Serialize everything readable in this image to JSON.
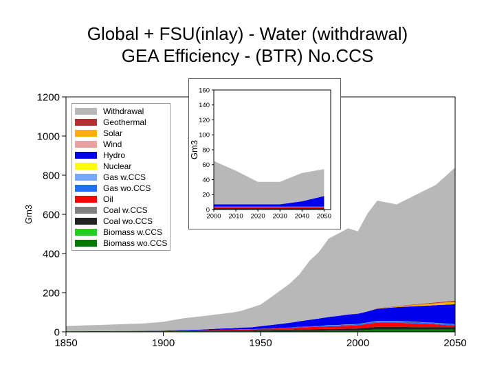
{
  "title_line1": "Global + FSU(inlay) - Water (withdrawal)",
  "title_line2": "GEA Efficiency - (BTR) No.CCS",
  "chart_data": [
    {
      "type": "area",
      "stacked": true,
      "ylabel": "Gm3",
      "xlim": [
        1850,
        2050
      ],
      "ylim": [
        0,
        1200
      ],
      "x_ticks": [
        "1850",
        "1900",
        "1950",
        "2000",
        "2050"
      ],
      "y_ticks": [
        "0",
        "200",
        "400",
        "600",
        "800",
        "1000",
        "1200"
      ],
      "legend": "top-left inside plot",
      "x": [
        1850,
        1870,
        1890,
        1900,
        1910,
        1920,
        1930,
        1935,
        1940,
        1945,
        1950,
        1955,
        1960,
        1965,
        1970,
        1975,
        1980,
        1985,
        1990,
        1995,
        2000,
        2005,
        2010,
        2020,
        2030,
        2040,
        2050
      ],
      "series": [
        {
          "name": "Biomass wo.CCS",
          "color": "#007a00",
          "values": [
            3,
            3,
            3,
            3,
            3,
            3,
            3,
            3,
            3,
            3,
            4,
            4,
            4,
            4,
            5,
            5,
            5,
            6,
            6,
            6,
            7,
            10,
            12,
            12,
            12,
            12,
            12
          ]
        },
        {
          "name": "Biomass w.CCS",
          "color": "#22cc22",
          "values": [
            0,
            0,
            0,
            0,
            0,
            0,
            0,
            0,
            0,
            0,
            0,
            0,
            0,
            0,
            0,
            0,
            0,
            0,
            0,
            0,
            0,
            0,
            0,
            0,
            0,
            0,
            0
          ]
        },
        {
          "name": "Coal wo.CCS",
          "color": "#222222",
          "values": [
            0,
            1,
            2,
            2,
            3,
            3,
            4,
            4,
            5,
            5,
            6,
            6,
            7,
            7,
            8,
            8,
            9,
            9,
            9,
            10,
            10,
            12,
            13,
            13,
            12,
            12,
            12
          ]
        },
        {
          "name": "Coal w.CCS",
          "color": "#808080",
          "values": [
            0,
            0,
            0,
            0,
            0,
            0,
            0,
            0,
            0,
            0,
            0,
            0,
            0,
            0,
            0,
            0,
            0,
            0,
            0,
            0,
            0,
            0,
            0,
            0,
            0,
            0,
            0
          ]
        },
        {
          "name": "Oil",
          "color": "#ff0000",
          "values": [
            0,
            0,
            0,
            0,
            1,
            2,
            3,
            3,
            4,
            4,
            5,
            6,
            7,
            8,
            10,
            11,
            12,
            13,
            14,
            15,
            16,
            18,
            22,
            22,
            18,
            14,
            8
          ]
        },
        {
          "name": "Gas wo.CCS",
          "color": "#1e6eff",
          "values": [
            0,
            0,
            0,
            0,
            0,
            0,
            1,
            1,
            1,
            1,
            1,
            2,
            2,
            3,
            3,
            4,
            4,
            5,
            5,
            6,
            6,
            7,
            8,
            8,
            8,
            7,
            6
          ]
        },
        {
          "name": "Gas w.CCS",
          "color": "#74a9ff",
          "values": [
            0,
            0,
            0,
            0,
            0,
            0,
            0,
            0,
            0,
            0,
            0,
            0,
            0,
            0,
            0,
            0,
            0,
            0,
            0,
            0,
            0,
            0,
            0,
            0,
            0,
            0,
            0
          ]
        },
        {
          "name": "Nuclear",
          "color": "#ffff00",
          "values": [
            0,
            0,
            0,
            0,
            0,
            0,
            0,
            0,
            0,
            0,
            0,
            0,
            0,
            0,
            0,
            0,
            0,
            1,
            1,
            1,
            1,
            1,
            1,
            1,
            1,
            1,
            1
          ]
        },
        {
          "name": "Hydro",
          "color": "#0000ee",
          "values": [
            0,
            0,
            0,
            1,
            2,
            4,
            6,
            7,
            9,
            10,
            13,
            16,
            20,
            24,
            28,
            33,
            38,
            42,
            46,
            50,
            52,
            56,
            62,
            70,
            80,
            90,
            102
          ]
        },
        {
          "name": "Wind",
          "color": "#e8a0a0",
          "values": [
            0,
            0,
            0,
            0,
            0,
            0,
            0,
            0,
            0,
            0,
            0,
            0,
            0,
            0,
            0,
            0,
            0,
            0,
            0,
            0,
            0,
            0,
            0,
            0,
            1,
            1,
            1
          ]
        },
        {
          "name": "Solar",
          "color": "#ffb000",
          "values": [
            0,
            0,
            0,
            0,
            0,
            0,
            0,
            0,
            0,
            0,
            0,
            0,
            0,
            0,
            0,
            0,
            0,
            0,
            0,
            0,
            0,
            0,
            1,
            3,
            6,
            9,
            12
          ]
        },
        {
          "name": "Geothermal",
          "color": "#b03030",
          "values": [
            0,
            0,
            0,
            0,
            0,
            0,
            0,
            0,
            0,
            0,
            0,
            0,
            0,
            0,
            0,
            0,
            0,
            0,
            1,
            1,
            1,
            1,
            1,
            2,
            3,
            4,
            5
          ]
        },
        {
          "name": "Withdrawal",
          "color": "#b8b8b8",
          "values": [
            27,
            32,
            38,
            45,
            60,
            68,
            75,
            80,
            85,
            100,
            110,
            140,
            170,
            200,
            240,
            300,
            340,
            400,
            420,
            440,
            420,
            500,
            550,
            520,
            560,
            600,
            680
          ]
        }
      ]
    },
    {
      "type": "area",
      "stacked": true,
      "ylabel": "Gm3",
      "xlim": [
        2000,
        2053
      ],
      "ylim": [
        0,
        160
      ],
      "x_ticks": [
        "2000",
        "2010",
        "2020",
        "2030",
        "2040",
        "2050"
      ],
      "y_ticks": [
        "0",
        "20",
        "40",
        "60",
        "80",
        "100",
        "120",
        "140",
        "160"
      ],
      "x": [
        2000,
        2010,
        2020,
        2030,
        2040,
        2050
      ],
      "series": [
        {
          "name": "Coal wo.CCS",
          "color": "#222222",
          "values": [
            2,
            2,
            2,
            2,
            2,
            2
          ]
        },
        {
          "name": "Oil",
          "color": "#ff0000",
          "values": [
            1,
            1,
            1,
            1,
            1,
            1
          ]
        },
        {
          "name": "Gas wo.CCS",
          "color": "#1e6eff",
          "values": [
            1,
            1,
            1,
            1,
            1,
            1
          ]
        },
        {
          "name": "Hydro",
          "color": "#0000ee",
          "values": [
            3,
            3,
            3,
            3,
            7,
            14
          ]
        },
        {
          "name": "Withdrawal",
          "color": "#b8b8b8",
          "values": [
            58,
            45,
            30,
            30,
            38,
            36
          ]
        }
      ]
    }
  ]
}
